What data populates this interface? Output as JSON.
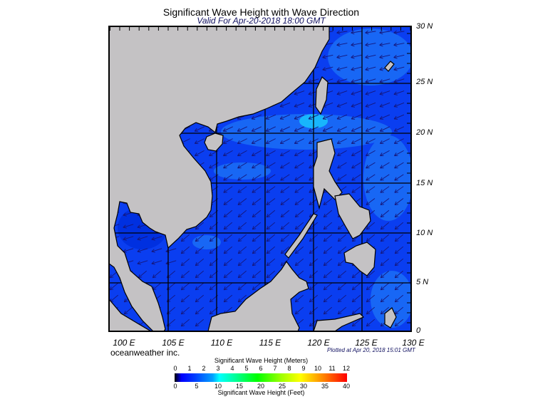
{
  "title": "Significant Wave Height with Wave Direction",
  "subtitle": "Valid For Apr-20-2018 18:00 GMT",
  "map": {
    "region": "South China Sea",
    "lon_range_deg": [
      99,
      130
    ],
    "lat_range_deg": [
      0,
      30
    ],
    "colors": {
      "land": "#c4c2c4",
      "sea_base": "#0a3ef0",
      "sea_light": "#1a6cf5",
      "sea_peak": "#18d8ff",
      "arrow": "#16167a",
      "grid": "#000000"
    },
    "lat_labels": [
      "30 N",
      "25 N",
      "20 N",
      "15 N",
      "10 N",
      "5 N",
      "0"
    ],
    "lon_labels": [
      "100 E",
      "105 E",
      "110 E",
      "115 E",
      "120 E",
      "125 E",
      "130 E"
    ]
  },
  "credit": "oceanweather inc.",
  "plotted": "Plotted at Apr 20, 2018 15:01 GMT",
  "colorbar": {
    "meters_title": "Significant Wave Height (Meters)",
    "meters_ticks": [
      "0",
      "1",
      "2",
      "3",
      "4",
      "5",
      "6",
      "7",
      "8",
      "9",
      "10",
      "11",
      "12"
    ],
    "feet_ticks": [
      "0",
      "5",
      "10",
      "15",
      "20",
      "25",
      "30",
      "35",
      "40"
    ],
    "feet_title": "Significant Wave Height (Feet)"
  }
}
